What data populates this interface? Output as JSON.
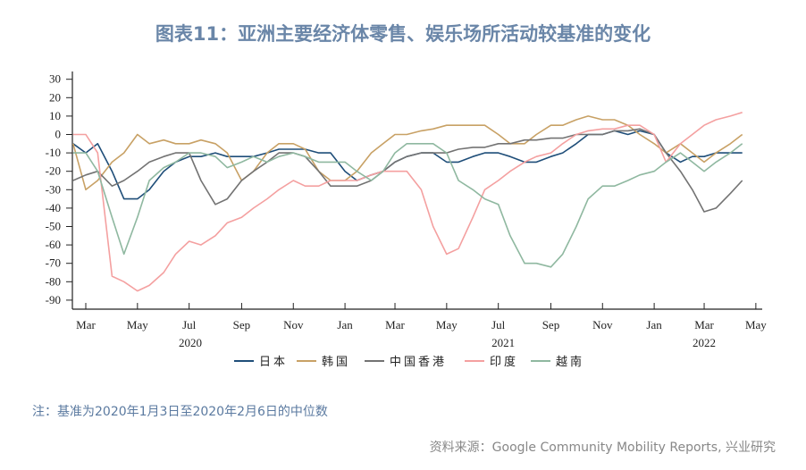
{
  "title": "图表11：亚洲主要经济体零售、娱乐场所活动较基准的变化",
  "note": "注：基准为2020年1月3日至2020年2月6日的中位数",
  "source": "资料来源：Google Community Mobility Reports, 兴业研究",
  "chart_data": {
    "type": "line",
    "ylim": [
      -90,
      30
    ],
    "yticks": [
      30,
      20,
      10,
      0,
      -10,
      -20,
      -30,
      -40,
      -50,
      -60,
      -70,
      -80,
      -90
    ],
    "xticks": [
      {
        "date": "2020-03-01",
        "label": "Mar"
      },
      {
        "date": "2020-05-01",
        "label": "May"
      },
      {
        "date": "2020-07-01",
        "label": "Jul"
      },
      {
        "date": "2020-09-01",
        "label": "Sep"
      },
      {
        "date": "2020-11-01",
        "label": "Nov"
      },
      {
        "date": "2021-01-01",
        "label": "Jan"
      },
      {
        "date": "2021-03-01",
        "label": "Mar"
      },
      {
        "date": "2021-05-01",
        "label": "May"
      },
      {
        "date": "2021-07-01",
        "label": "Jul"
      },
      {
        "date": "2021-09-01",
        "label": "Sep"
      },
      {
        "date": "2021-11-01",
        "label": "Nov"
      },
      {
        "date": "2022-01-01",
        "label": "Jan"
      },
      {
        "date": "2022-03-01",
        "label": "Mar"
      },
      {
        "date": "2022-05-01",
        "label": "May"
      }
    ],
    "year_labels": [
      {
        "date": "2020-08-01",
        "label": "2020"
      },
      {
        "date": "2021-08-01",
        "label": "2021"
      },
      {
        "date": "2022-03-01",
        "label": "2022"
      }
    ],
    "legend_placement": "bottom",
    "grid": false,
    "x": [
      "2020-02-15",
      "2020-03-01",
      "2020-03-15",
      "2020-04-01",
      "2020-04-15",
      "2020-05-01",
      "2020-05-15",
      "2020-06-01",
      "2020-06-15",
      "2020-07-01",
      "2020-07-15",
      "2020-08-01",
      "2020-08-15",
      "2020-09-01",
      "2020-09-15",
      "2020-10-01",
      "2020-10-15",
      "2020-11-01",
      "2020-11-15",
      "2020-12-01",
      "2020-12-15",
      "2021-01-01",
      "2021-01-15",
      "2021-02-01",
      "2021-02-15",
      "2021-03-01",
      "2021-03-15",
      "2021-04-01",
      "2021-04-15",
      "2021-05-01",
      "2021-05-15",
      "2021-06-01",
      "2021-06-15",
      "2021-07-01",
      "2021-07-15",
      "2021-08-01",
      "2021-08-15",
      "2021-09-01",
      "2021-09-15",
      "2021-10-01",
      "2021-10-15",
      "2021-11-01",
      "2021-11-15",
      "2021-12-01",
      "2021-12-15",
      "2022-01-01",
      "2022-01-15",
      "2022-02-01",
      "2022-02-15",
      "2022-03-01",
      "2022-03-15",
      "2022-04-01",
      "2022-04-15"
    ],
    "series": [
      {
        "name": "日本",
        "color": "#1f4e79",
        "values": [
          -5,
          -10,
          -5,
          -20,
          -35,
          -35,
          -30,
          -20,
          -15,
          -12,
          -12,
          -10,
          -12,
          -12,
          -12,
          -10,
          -8,
          -8,
          -8,
          -10,
          -10,
          -20,
          -25,
          -22,
          -20,
          -15,
          -12,
          -10,
          -10,
          -15,
          -15,
          -12,
          -10,
          -10,
          -12,
          -15,
          -15,
          -12,
          -10,
          -5,
          0,
          0,
          2,
          0,
          2,
          0,
          -10,
          -15,
          -12,
          -12,
          -10,
          -10,
          -10
        ]
      },
      {
        "name": "韩国",
        "color": "#c8a165",
        "values": [
          -5,
          -30,
          -25,
          -15,
          -10,
          0,
          -5,
          -3,
          -5,
          -5,
          -3,
          -5,
          -10,
          -25,
          -20,
          -10,
          -5,
          -5,
          -8,
          -20,
          -25,
          -25,
          -20,
          -10,
          -5,
          0,
          0,
          2,
          3,
          5,
          5,
          5,
          5,
          0,
          -5,
          -5,
          0,
          5,
          5,
          8,
          10,
          8,
          8,
          5,
          0,
          -5,
          -10,
          -5,
          -10,
          -15,
          -10,
          -5,
          0
        ]
      },
      {
        "name": "中国香港",
        "color": "#737373",
        "values": [
          -25,
          -22,
          -20,
          -28,
          -25,
          -20,
          -15,
          -12,
          -10,
          -10,
          -25,
          -38,
          -35,
          -25,
          -20,
          -15,
          -10,
          -10,
          -12,
          -20,
          -28,
          -28,
          -28,
          -25,
          -20,
          -15,
          -12,
          -10,
          -10,
          -10,
          -8,
          -7,
          -7,
          -5,
          -5,
          -3,
          -3,
          -2,
          -2,
          0,
          0,
          0,
          2,
          2,
          3,
          0,
          -10,
          -20,
          -30,
          -42,
          -40,
          -32,
          -25
        ]
      },
      {
        "name": "印度",
        "color": "#f4a0a0",
        "values": [
          0,
          0,
          -10,
          -77,
          -80,
          -85,
          -82,
          -75,
          -65,
          -58,
          -60,
          -55,
          -48,
          -45,
          -40,
          -35,
          -30,
          -25,
          -28,
          -28,
          -25,
          -25,
          -25,
          -22,
          -20,
          -20,
          -20,
          -30,
          -50,
          -65,
          -62,
          -45,
          -30,
          -25,
          -20,
          -15,
          -12,
          -10,
          -5,
          0,
          2,
          3,
          3,
          5,
          5,
          0,
          -15,
          -5,
          0,
          5,
          8,
          10,
          12
        ]
      },
      {
        "name": "越南",
        "color": "#8fb8a0",
        "values": [
          -10,
          -10,
          -20,
          -45,
          -65,
          -45,
          -25,
          -18,
          -15,
          -10,
          -10,
          -12,
          -18,
          -15,
          -12,
          -15,
          -12,
          -10,
          -12,
          -15,
          -15,
          -15,
          -20,
          -25,
          -20,
          -10,
          -5,
          -5,
          -5,
          -10,
          -25,
          -30,
          -35,
          -38,
          -55,
          -70,
          -70,
          -72,
          -65,
          -50,
          -35,
          -28,
          -28,
          -25,
          -22,
          -20,
          -15,
          -10,
          -15,
          -20,
          -15,
          -10,
          -5
        ]
      }
    ]
  }
}
